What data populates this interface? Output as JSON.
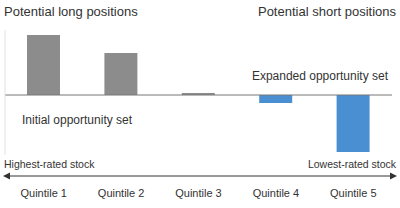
{
  "chart_data": {
    "type": "bar",
    "categories": [
      "Quintile 1",
      "Quintile 2",
      "Quintile 3",
      "Quintile 4",
      "Quintile 5"
    ],
    "values": [
      60,
      42,
      2,
      -8,
      -57
    ],
    "colors": [
      "#8c8c8c",
      "#8c8c8c",
      "#8c8c8c",
      "#4a8fd2",
      "#4a8fd2"
    ],
    "ylim": [
      -60,
      65
    ],
    "tick_labels": "x",
    "annotations": [
      "Potential long positions",
      "Potential short positions",
      "Expanded opportunity set",
      "Initial opportunity set",
      "Highest-rated stock",
      "Lowest-rated stock"
    ]
  }
}
